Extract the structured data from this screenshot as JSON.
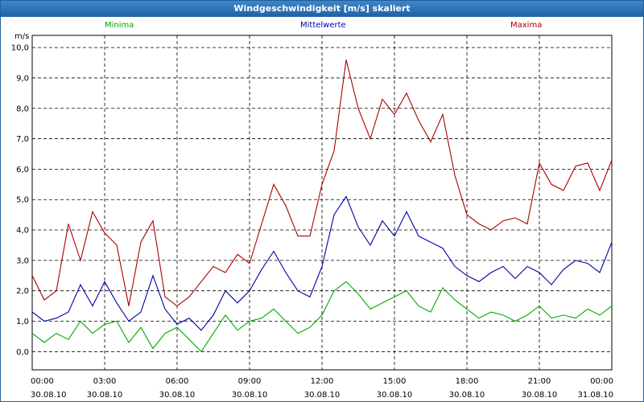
{
  "window": {
    "title": "Windgeschwindigkeit [m/s] skaliert"
  },
  "chart_data": {
    "type": "line",
    "title": "Windgeschwindigkeit [m/s] skaliert",
    "ylabel": "m/s",
    "ylim": [
      -0.6,
      10.4
    ],
    "xlim": [
      0,
      24
    ],
    "grid": true,
    "yticks": [
      0,
      1,
      2,
      3,
      4,
      5,
      6,
      7,
      8,
      9,
      10
    ],
    "ytick_labels": [
      "0,0",
      "1,0",
      "2,0",
      "3,0",
      "4,0",
      "5,0",
      "6,0",
      "7,0",
      "8,0",
      "9,0",
      "10,0"
    ],
    "xticks": [
      0,
      3,
      6,
      9,
      12,
      15,
      18,
      21,
      24
    ],
    "xtick_labels": [
      {
        "time": "00:00",
        "date": "30.08.10"
      },
      {
        "time": "03:00",
        "date": "30.08.10"
      },
      {
        "time": "06:00",
        "date": "30.08.10"
      },
      {
        "time": "09:00",
        "date": "30.08.10"
      },
      {
        "time": "12:00",
        "date": "30.08.10"
      },
      {
        "time": "15:00",
        "date": "30.08.10"
      },
      {
        "time": "18:00",
        "date": "30.08.10"
      },
      {
        "time": "21:00",
        "date": "30.08.10"
      },
      {
        "time": "00:00",
        "date": "31.08.10"
      }
    ],
    "series": [
      {
        "name": "Minima",
        "color": "#00aa00",
        "x": [
          0,
          0.5,
          1.0,
          1.5,
          2.0,
          2.5,
          3.0,
          3.5,
          4.0,
          4.5,
          5.0,
          5.5,
          6.0,
          6.5,
          7.0,
          7.5,
          8.0,
          8.5,
          9.0,
          9.5,
          10.0,
          10.5,
          11.0,
          11.5,
          12.0,
          12.5,
          13.0,
          13.5,
          14.0,
          14.5,
          15.0,
          15.5,
          16.0,
          16.5,
          17.0,
          17.5,
          18.0,
          18.5,
          19.0,
          19.5,
          20.0,
          20.5,
          21.0,
          21.5,
          22.0,
          22.5,
          23.0,
          23.5,
          24.0
        ],
        "values": [
          0.6,
          0.3,
          0.6,
          0.4,
          1.0,
          0.6,
          0.9,
          1.0,
          0.3,
          0.8,
          0.1,
          0.6,
          0.8,
          0.4,
          0.0,
          0.6,
          1.2,
          0.7,
          1.0,
          1.1,
          1.4,
          1.0,
          0.6,
          0.8,
          1.2,
          2.0,
          2.3,
          1.9,
          1.4,
          1.6,
          1.8,
          2.0,
          1.5,
          1.3,
          2.1,
          1.7,
          1.4,
          1.1,
          1.3,
          1.2,
          1.0,
          1.2,
          1.5,
          1.1,
          1.2,
          1.1,
          1.4,
          1.2,
          1.5
        ]
      },
      {
        "name": "Mittelwerte",
        "color": "#0000aa",
        "x": [
          0,
          0.5,
          1.0,
          1.5,
          2.0,
          2.5,
          3.0,
          3.5,
          4.0,
          4.5,
          5.0,
          5.5,
          6.0,
          6.5,
          7.0,
          7.5,
          8.0,
          8.5,
          9.0,
          9.5,
          10.0,
          10.5,
          11.0,
          11.5,
          12.0,
          12.5,
          13.0,
          13.5,
          14.0,
          14.5,
          15.0,
          15.5,
          16.0,
          16.5,
          17.0,
          17.5,
          18.0,
          18.5,
          19.0,
          19.5,
          20.0,
          20.5,
          21.0,
          21.5,
          22.0,
          22.5,
          23.0,
          23.5,
          24.0
        ],
        "values": [
          1.3,
          1.0,
          1.1,
          1.3,
          2.2,
          1.5,
          2.3,
          1.6,
          1.0,
          1.3,
          2.5,
          1.4,
          0.9,
          1.1,
          0.7,
          1.2,
          2.0,
          1.6,
          2.0,
          2.7,
          3.3,
          2.6,
          2.0,
          1.8,
          2.8,
          4.5,
          5.1,
          4.1,
          3.5,
          4.3,
          3.8,
          4.6,
          3.8,
          3.6,
          3.4,
          2.8,
          2.5,
          2.3,
          2.6,
          2.8,
          2.4,
          2.8,
          2.6,
          2.2,
          2.7,
          3.0,
          2.9,
          2.6,
          3.6
        ]
      },
      {
        "name": "Maxima",
        "color": "#aa0000",
        "x": [
          0,
          0.5,
          1.0,
          1.5,
          2.0,
          2.5,
          3.0,
          3.5,
          4.0,
          4.5,
          5.0,
          5.5,
          6.0,
          6.5,
          7.0,
          7.5,
          8.0,
          8.5,
          9.0,
          9.5,
          10.0,
          10.5,
          11.0,
          11.5,
          12.0,
          12.5,
          13.0,
          13.5,
          14.0,
          14.5,
          15.0,
          15.5,
          16.0,
          16.5,
          17.0,
          17.5,
          18.0,
          18.5,
          19.0,
          19.5,
          20.0,
          20.5,
          21.0,
          21.5,
          22.0,
          22.5,
          23.0,
          23.5,
          24.0
        ],
        "values": [
          2.5,
          1.7,
          2.0,
          4.2,
          3.0,
          4.6,
          3.9,
          3.5,
          1.5,
          3.6,
          4.3,
          1.8,
          1.5,
          1.8,
          2.3,
          2.8,
          2.6,
          3.2,
          2.9,
          4.2,
          5.5,
          4.8,
          3.8,
          3.8,
          5.5,
          6.6,
          9.6,
          8.0,
          7.0,
          8.3,
          7.8,
          8.5,
          7.6,
          6.9,
          7.8,
          5.8,
          4.5,
          4.2,
          4.0,
          4.3,
          4.4,
          4.2,
          6.2,
          5.5,
          5.3,
          6.1,
          6.2,
          5.3,
          6.3
        ]
      }
    ]
  }
}
